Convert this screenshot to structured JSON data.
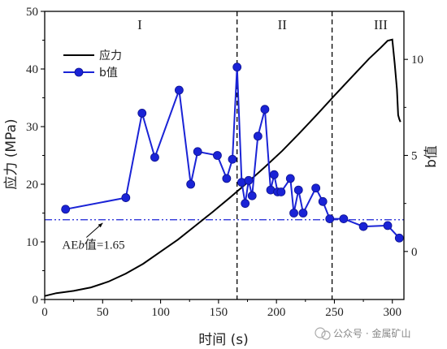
{
  "chart_data": {
    "type": "line",
    "xlabel": "时间 (s)",
    "ylabel_left": "应力 (MPa)",
    "ylabel_right": "b值",
    "x_ticks": [
      0,
      50,
      100,
      150,
      200,
      250,
      300
    ],
    "y_left_ticks": [
      0,
      10,
      20,
      30,
      40,
      50
    ],
    "y_right_ticks": [
      0,
      5,
      10
    ],
    "xlim": [
      0,
      310
    ],
    "ylim_left": [
      0,
      50
    ],
    "ylim_right": [
      -2.5,
      12.5
    ],
    "grid": false,
    "legend_position": "top-left",
    "regions": [
      {
        "label": "I",
        "x_center": 82
      },
      {
        "label": "II",
        "x_center": 205
      },
      {
        "label": "III",
        "x_center": 290
      }
    ],
    "dividers": [
      166,
      248
    ],
    "series": [
      {
        "name": "应力",
        "axis": "left",
        "color": "#000000",
        "x": [
          0,
          10,
          25,
          40,
          55,
          70,
          85,
          100,
          115,
          130,
          145,
          160,
          175,
          190,
          205,
          220,
          235,
          250,
          265,
          280,
          290,
          296,
          300,
          302,
          304,
          305,
          306,
          307
        ],
        "y": [
          0.6,
          1.1,
          1.5,
          2.1,
          3.1,
          4.5,
          6.2,
          8.3,
          10.4,
          12.8,
          15.2,
          17.7,
          20.3,
          23.0,
          25.8,
          28.9,
          32.1,
          35.4,
          38.6,
          41.8,
          43.7,
          44.9,
          45.1,
          41.0,
          36.5,
          32.0,
          31.3,
          30.8
        ]
      },
      {
        "name": "b值",
        "axis": "right",
        "color": "#1a23d6",
        "x": [
          18,
          70,
          84,
          95,
          116,
          126,
          132,
          149,
          157,
          162,
          166,
          170,
          173,
          176,
          179,
          184,
          190,
          195,
          198,
          201,
          204,
          212,
          215,
          219,
          223,
          234,
          240,
          246,
          258,
          275,
          296,
          306
        ],
        "y": [
          2.2,
          2.8,
          7.2,
          4.9,
          8.4,
          3.5,
          5.2,
          5.0,
          3.8,
          4.8,
          9.6,
          3.6,
          2.5,
          3.7,
          2.9,
          6.0,
          7.4,
          3.2,
          4.0,
          3.1,
          3.1,
          3.8,
          2.0,
          3.2,
          2.0,
          3.3,
          2.6,
          1.7,
          1.7,
          1.3,
          1.35,
          0.7
        ]
      }
    ],
    "threshold_line": {
      "axis": "right",
      "value": 1.65,
      "color": "#1a23d6"
    },
    "annotation": {
      "text_prefix": "AE",
      "text_italic": "b",
      "text_suffix": "值=1.65",
      "x": 22,
      "y_left": 8.8
    }
  },
  "watermark": "公众号 · 金属矿山"
}
